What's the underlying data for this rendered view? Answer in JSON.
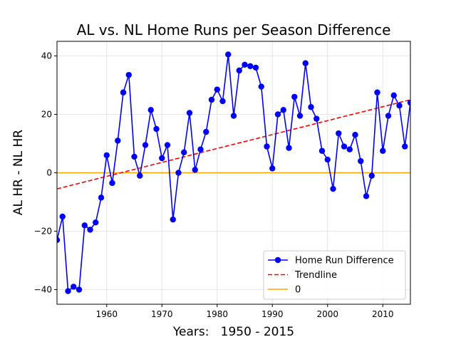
{
  "chart_data": {
    "type": "line",
    "title": "AL vs. NL Home Runs per Season Difference",
    "xlabel": "Years:   1950 - 2015",
    "ylabel": "AL HR - NL HR",
    "xlim": [
      1951,
      2015
    ],
    "ylim": [
      -45,
      45
    ],
    "x_ticks": [
      1960,
      1970,
      1980,
      1990,
      2000,
      2010
    ],
    "y_ticks": [
      -40,
      -20,
      0,
      20,
      40
    ],
    "grid": true,
    "legend_position": "bottom-right",
    "series": [
      {
        "name": "Home Run Difference",
        "style": "line-markers",
        "color": "#0000ff",
        "x": [
          1951,
          1952,
          1953,
          1954,
          1955,
          1956,
          1957,
          1958,
          1959,
          1960,
          1961,
          1962,
          1963,
          1964,
          1965,
          1966,
          1967,
          1968,
          1969,
          1970,
          1971,
          1972,
          1973,
          1974,
          1975,
          1976,
          1977,
          1978,
          1979,
          1980,
          1981,
          1982,
          1983,
          1984,
          1985,
          1986,
          1987,
          1988,
          1989,
          1990,
          1991,
          1992,
          1993,
          1994,
          1995,
          1996,
          1997,
          1998,
          1999,
          2000,
          2001,
          2002,
          2003,
          2004,
          2005,
          2006,
          2007,
          2008,
          2009,
          2010,
          2011,
          2012,
          2013,
          2014,
          2015
        ],
        "y": [
          -23,
          -15,
          -40.5,
          -39,
          -40,
          -18,
          -19.5,
          -17,
          -8.5,
          6,
          -3.5,
          11,
          27.5,
          33.5,
          5.5,
          -1,
          9.5,
          21.5,
          15,
          5,
          9.5,
          -16,
          0,
          7,
          20.5,
          1,
          8,
          14,
          25,
          28.5,
          24.5,
          40.5,
          19.5,
          35,
          37,
          36.5,
          36,
          29.5,
          9,
          1.5,
          20,
          21.5,
          8.5,
          26,
          19.5,
          37.5,
          22.5,
          18.5,
          7.5,
          4.5,
          -5.5,
          13.5,
          9,
          8,
          13,
          4,
          -8,
          -1,
          27.5,
          7.5,
          19.5,
          26.5,
          23,
          9,
          24
        ]
      },
      {
        "name": "Trendline",
        "style": "dashed",
        "color": "#ff0000",
        "x": [
          1951,
          2015
        ],
        "y": [
          -5.5,
          25
        ]
      },
      {
        "name": "0",
        "style": "solid",
        "color": "#ffa500",
        "x": [
          1951,
          2015
        ],
        "y": [
          0,
          0
        ]
      }
    ]
  }
}
